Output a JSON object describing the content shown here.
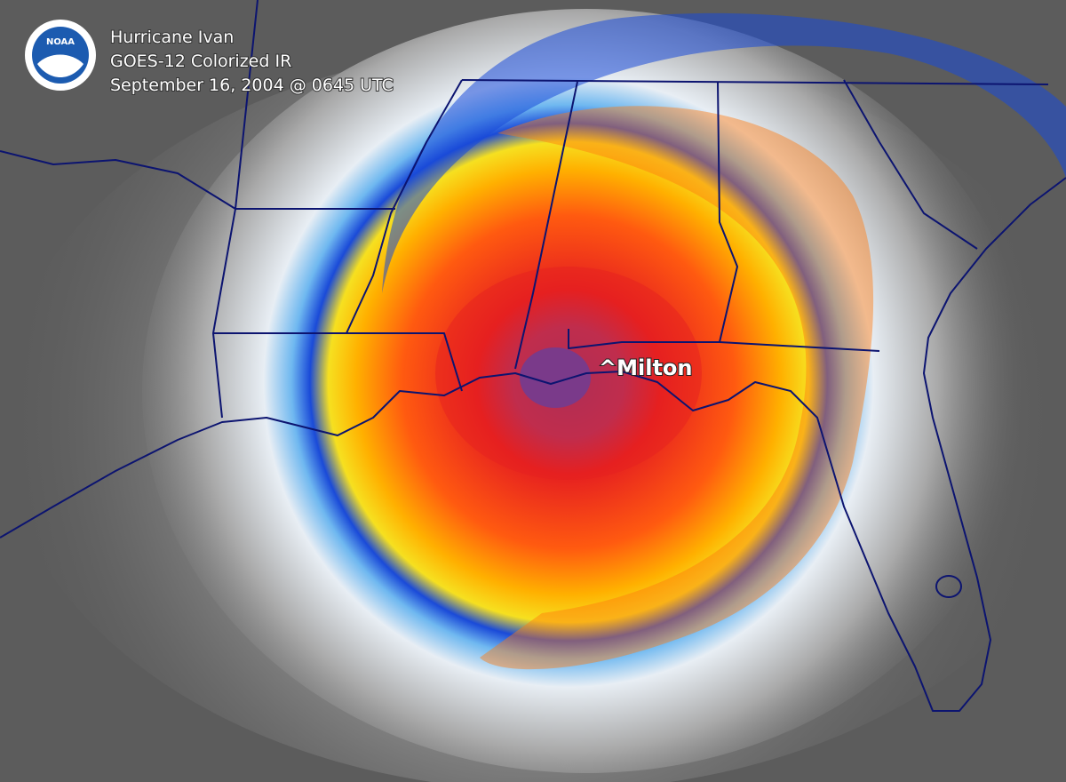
{
  "header": {
    "title": "Hurricane Ivan",
    "subtitle": "GOES-12 Colorized IR",
    "timestamp": "September 16, 2004 @ 0645 UTC"
  },
  "logo": {
    "label": "NOAA"
  },
  "annotations": [
    {
      "label": "^Milton"
    }
  ]
}
